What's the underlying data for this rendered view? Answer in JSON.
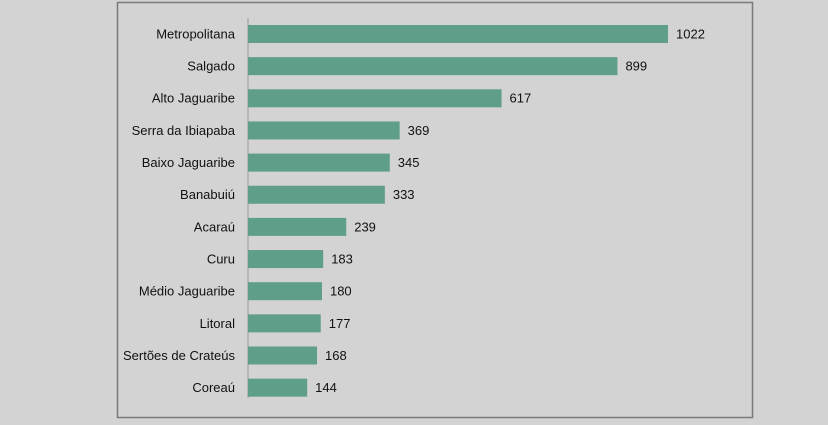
{
  "chart_data": {
    "type": "bar",
    "orientation": "horizontal",
    "categories": [
      "Metropolitana",
      "Salgado",
      "Alto Jaguaribe",
      "Serra da Ibiapaba",
      "Baixo Jaguaribe",
      "Banabuiú",
      "Acaraú",
      "Curu",
      "Médio Jaguaribe",
      "Litoral",
      "Sertões de Crateús",
      "Coreaú"
    ],
    "values": [
      1022,
      899,
      617,
      369,
      345,
      333,
      239,
      183,
      180,
      177,
      168,
      144
    ],
    "color": "#5f9e88"
  }
}
